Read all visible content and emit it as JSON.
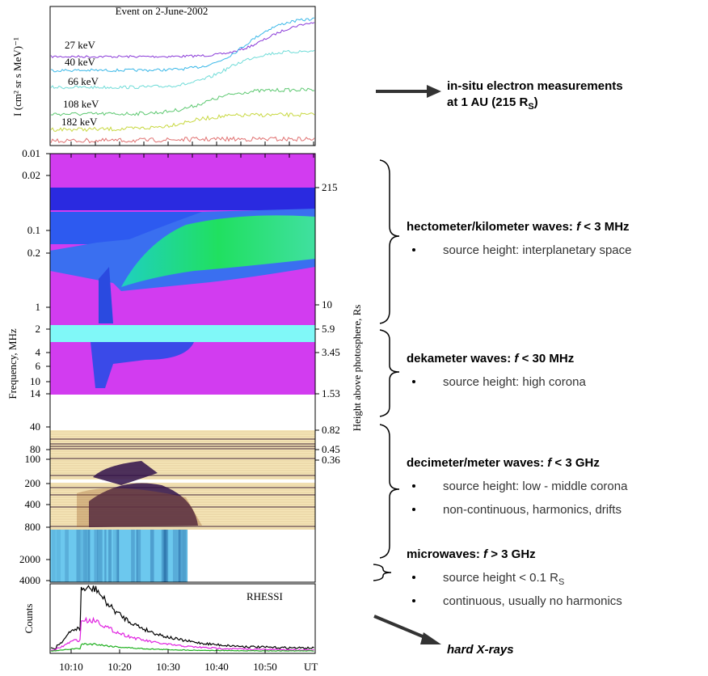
{
  "title": "Event on 2-June-2002",
  "electron_panel": {
    "y_label": "I (cm² sr s MeV)⁻¹",
    "energies": [
      "27 keV",
      "40 keV",
      "66 keV",
      "108 keV",
      "182 keV"
    ]
  },
  "spectrogram": {
    "frequency_label": "Frequency, MHz",
    "frequency_ticks": [
      0.01,
      0.02,
      0.1,
      0.2,
      1,
      2,
      4,
      6,
      10,
      14,
      40,
      80,
      100,
      200,
      400,
      800,
      2000,
      4000
    ],
    "height_label": "Height above photosphere, Rs",
    "height_ticks": [
      215,
      10,
      5.9,
      3.45,
      1.53,
      0.82,
      0.45,
      0.36
    ]
  },
  "xray_panel": {
    "y_label": "Counts",
    "instrument": "RHESSI",
    "time_ticks": [
      "10:10",
      "10:20",
      "10:30",
      "10:40",
      "10:50"
    ],
    "time_unit": "UT"
  },
  "annotations": {
    "electrons": {
      "line1": "in-situ electron measurements",
      "line2": [
        "at 1 AU (215 R",
        "S",
        ")"
      ]
    },
    "hectometer": {
      "heading": [
        "hectometer/kilometer waves: ",
        "f",
        " < 3 MHz"
      ],
      "bullets": [
        "source height: interplanetary space"
      ]
    },
    "dekameter": {
      "heading": [
        "dekameter waves: ",
        "f",
        " < 30 MHz"
      ],
      "bullets": [
        "source height: high corona"
      ]
    },
    "decimeter": {
      "heading": [
        "decimeter/meter waves: ",
        "f",
        " < 3 GHz"
      ],
      "bullets": [
        "source height: low - middle corona",
        "non-continuous, harmonics, drifts"
      ]
    },
    "microwaves": {
      "heading": [
        "microwaves: ",
        "f",
        " > 3 GHz"
      ],
      "bullets": [
        [
          "source height < 0.1 R",
          "S"
        ],
        "continuous, usually no harmonics"
      ]
    },
    "hard_xrays": "hard X-rays"
  }
}
